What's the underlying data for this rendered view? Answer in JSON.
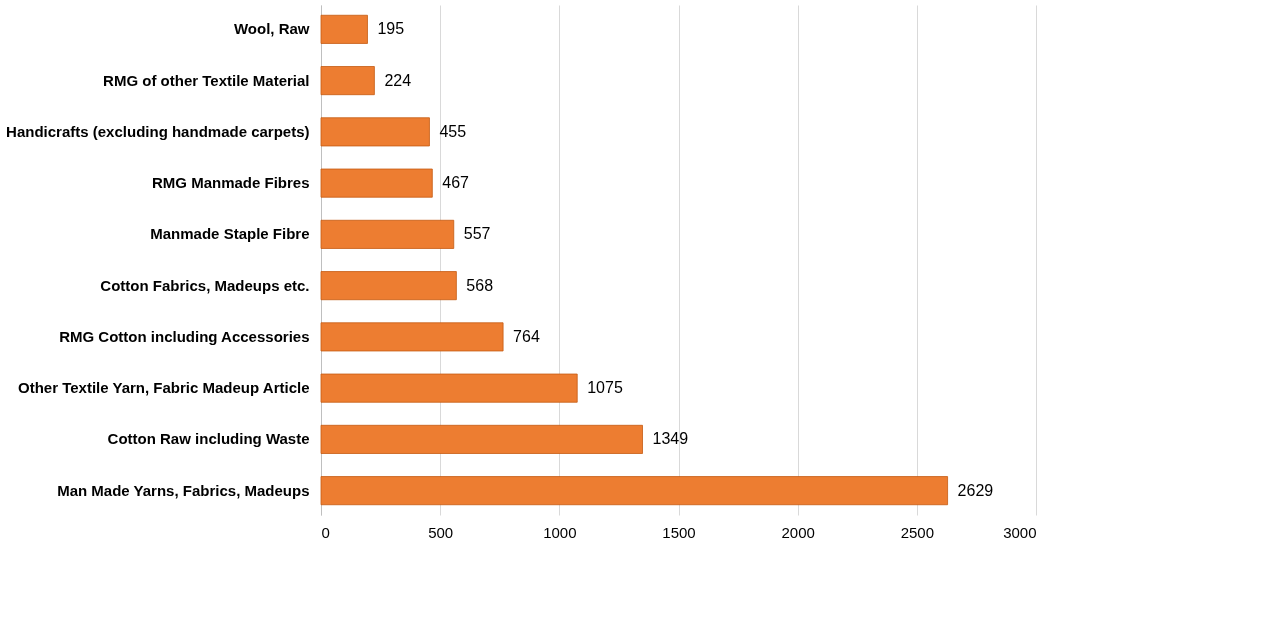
{
  "chart_data": {
    "type": "bar",
    "orientation": "horizontal",
    "categories": [
      "Wool, Raw",
      "RMG of other Textile Material",
      "Handicrafts (excluding handmade carpets)",
      "RMG Manmade Fibres",
      "Manmade Staple Fibre",
      "Cotton Fabrics, Madeups etc.",
      "RMG Cotton including Accessories",
      "Other Textile Yarn, Fabric Madeup Article",
      "Cotton Raw including Waste",
      "Man Made Yarns, Fabrics, Madeups"
    ],
    "values": [
      195,
      224,
      455,
      467,
      557,
      568,
      764,
      1075,
      1349,
      2629
    ],
    "color": "#ed7d31",
    "xlim": [
      0,
      3000
    ],
    "xticks": [
      0,
      500,
      1000,
      1500,
      2000,
      2500,
      3000
    ],
    "grid": "x",
    "data_labels": true
  }
}
